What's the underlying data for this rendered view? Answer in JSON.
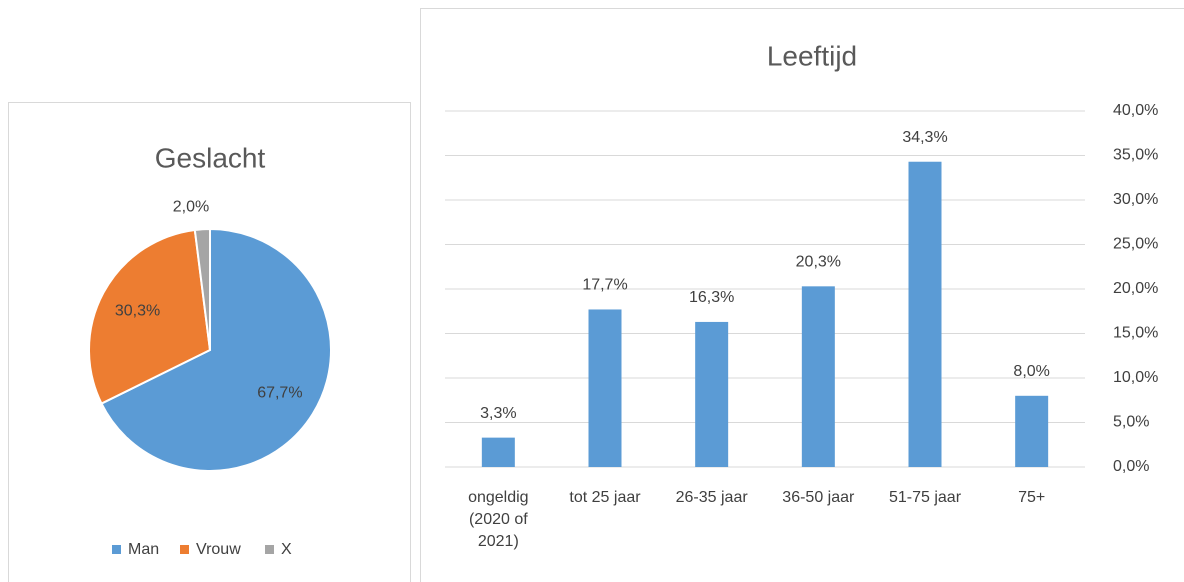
{
  "chart_data": [
    {
      "type": "pie",
      "title": "Geslacht",
      "categories": [
        "Man",
        "Vrouw",
        "X"
      ],
      "values": [
        67.7,
        30.3,
        2.0
      ],
      "value_labels": [
        "67,7%",
        "30,3%",
        "2,0%"
      ],
      "colors": [
        "#5b9bd5",
        "#ed7d31",
        "#a5a5a5"
      ],
      "legend": "bottom"
    },
    {
      "type": "bar",
      "title": "Leeftijd",
      "categories": [
        "ongeldig (2020 of 2021)",
        "tot 25 jaar",
        "26-35 jaar",
        "36-50 jaar",
        "51-75 jaar",
        "75+"
      ],
      "values": [
        3.3,
        17.7,
        16.3,
        20.3,
        34.3,
        8.0
      ],
      "value_labels": [
        "3,3%",
        "17,7%",
        "16,3%",
        "20,3%",
        "34,3%",
        "8,0%"
      ],
      "color": "#5b9bd5",
      "ylim": [
        0,
        40
      ],
      "yticks": [
        {
          "value": 0,
          "label": "0,0%"
        },
        {
          "value": 5,
          "label": "5,0%"
        },
        {
          "value": 10,
          "label": "10,0%"
        },
        {
          "value": 15,
          "label": "15,0%"
        },
        {
          "value": 20,
          "label": "20,0%"
        },
        {
          "value": 25,
          "label": "25,0%"
        },
        {
          "value": 30,
          "label": "30,0%"
        },
        {
          "value": 35,
          "label": "35,0%"
        },
        {
          "value": 40,
          "label": "40,0%"
        }
      ],
      "grid": true
    }
  ]
}
